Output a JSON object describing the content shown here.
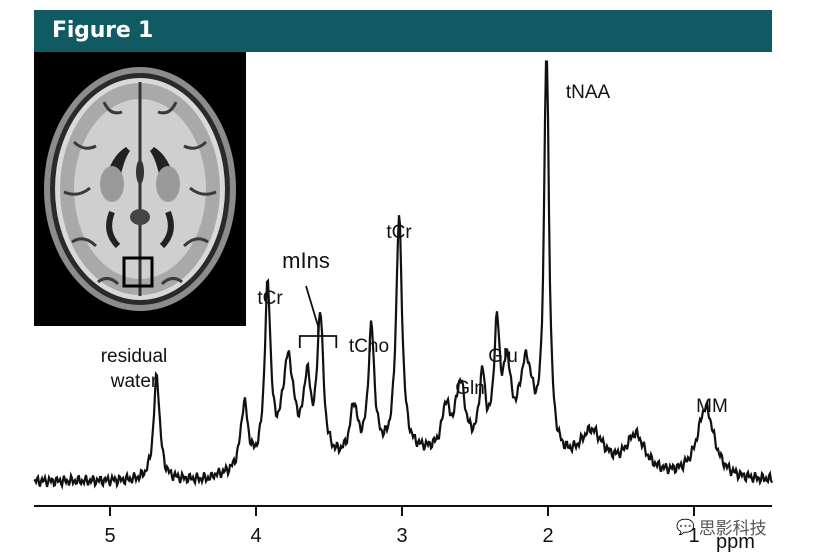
{
  "figure": {
    "title": "Figure 1"
  },
  "inset": {
    "description_icon": "brain-mri-axial-icon"
  },
  "chart_data": {
    "type": "line",
    "xlabel": "ppm",
    "x_reversed": true,
    "xlim": [
      5.5,
      0.5
    ],
    "ticks": [
      {
        "value": 5,
        "label": "5"
      },
      {
        "value": 4,
        "label": "4"
      },
      {
        "value": 3,
        "label": "3"
      },
      {
        "value": 2,
        "label": "2"
      },
      {
        "value": 1,
        "label": "1"
      }
    ],
    "peaks": [
      {
        "label": "residual\nwater",
        "ppm": 4.68,
        "height": 0.25
      },
      {
        "label": "tCr",
        "ppm": 3.92,
        "height": 0.42
      },
      {
        "label": "mIns",
        "ppm": 3.56,
        "height": 0.34,
        "bracket": [
          3.7,
          3.45
        ]
      },
      {
        "label": "tCho",
        "ppm": 3.21,
        "height": 0.3
      },
      {
        "label": "tCr",
        "ppm": 3.02,
        "height": 0.56
      },
      {
        "label": "Gln",
        "ppm": 2.45,
        "height": 0.17
      },
      {
        "label": "Glu",
        "ppm": 2.35,
        "height": 0.28
      },
      {
        "label": "tNAA",
        "ppm": 2.01,
        "height": 0.98
      },
      {
        "label": "MM",
        "ppm": 0.92,
        "height": 0.17
      }
    ],
    "line_color": "#111111"
  },
  "watermark": {
    "text": "思影科技",
    "icon": "wechat-icon"
  }
}
